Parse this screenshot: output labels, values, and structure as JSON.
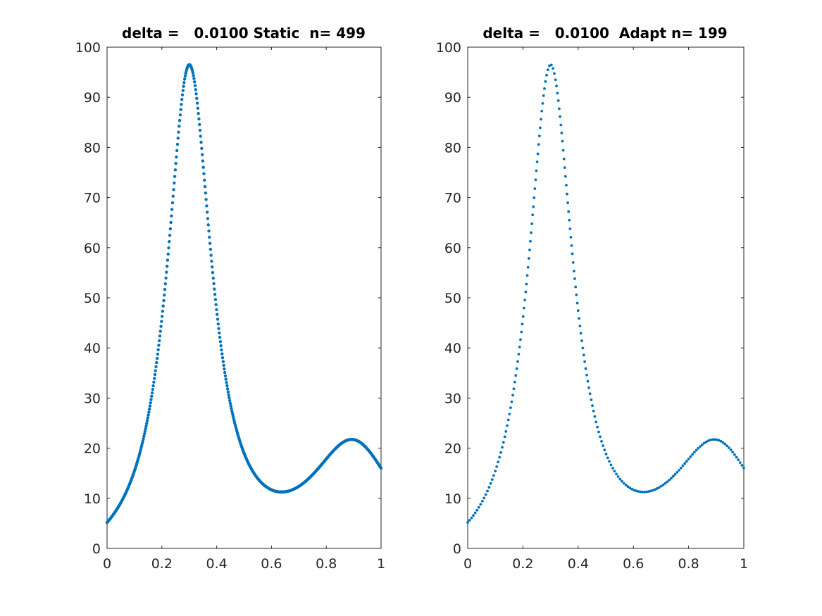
{
  "chart_data": [
    {
      "type": "scatter",
      "title": "delta =   0.0100 Static  n= 499",
      "xlabel": "",
      "ylabel": "",
      "xlim": [
        0,
        1
      ],
      "ylim": [
        0,
        100
      ],
      "xticks": [
        0,
        0.2,
        0.4,
        0.6,
        0.8,
        1
      ],
      "xtick_labels": [
        "0",
        "0.2",
        "0.4",
        "0.6",
        "0.8",
        "1"
      ],
      "yticks": [
        0,
        10,
        20,
        30,
        40,
        50,
        60,
        70,
        80,
        90,
        100
      ],
      "ytick_labels": [
        "0",
        "10",
        "20",
        "30",
        "40",
        "50",
        "60",
        "70",
        "80",
        "90",
        "100"
      ],
      "grid": false,
      "marker_color": "#0072BD",
      "sampling": "uniform",
      "n_points": 499,
      "x_range": [
        0,
        1
      ],
      "curve_key_points": [
        [
          0,
          5.0
        ],
        [
          0.1,
          16.2
        ],
        [
          0.2,
          47.6
        ],
        [
          0.3,
          96.5
        ],
        [
          0.4,
          48.6
        ],
        [
          0.5,
          17.7
        ],
        [
          0.636,
          11.2
        ],
        [
          0.76,
          15.0
        ],
        [
          0.895,
          21.7
        ],
        [
          1.0,
          16.0
        ]
      ]
    },
    {
      "type": "scatter",
      "title": "delta =   0.0100  Adapt n= 199",
      "xlabel": "",
      "ylabel": "",
      "xlim": [
        0,
        1
      ],
      "ylim": [
        0,
        100
      ],
      "xticks": [
        0,
        0.2,
        0.4,
        0.6,
        0.8,
        1
      ],
      "xtick_labels": [
        "0",
        "0.2",
        "0.4",
        "0.6",
        "0.8",
        "1"
      ],
      "yticks": [
        0,
        10,
        20,
        30,
        40,
        50,
        60,
        70,
        80,
        90,
        100
      ],
      "ytick_labels": [
        "0",
        "10",
        "20",
        "30",
        "40",
        "50",
        "60",
        "70",
        "80",
        "90",
        "100"
      ],
      "grid": false,
      "marker_color": "#0072BD",
      "sampling": "adaptive",
      "n_points": 199,
      "x_range": [
        0,
        1
      ],
      "curve_key_points": [
        [
          0,
          5.0
        ],
        [
          0.1,
          16.2
        ],
        [
          0.2,
          47.6
        ],
        [
          0.3,
          96.5
        ],
        [
          0.4,
          48.6
        ],
        [
          0.5,
          17.7
        ],
        [
          0.636,
          11.2
        ],
        [
          0.76,
          15.0
        ],
        [
          0.895,
          21.7
        ],
        [
          1.0,
          16.0
        ]
      ]
    }
  ]
}
